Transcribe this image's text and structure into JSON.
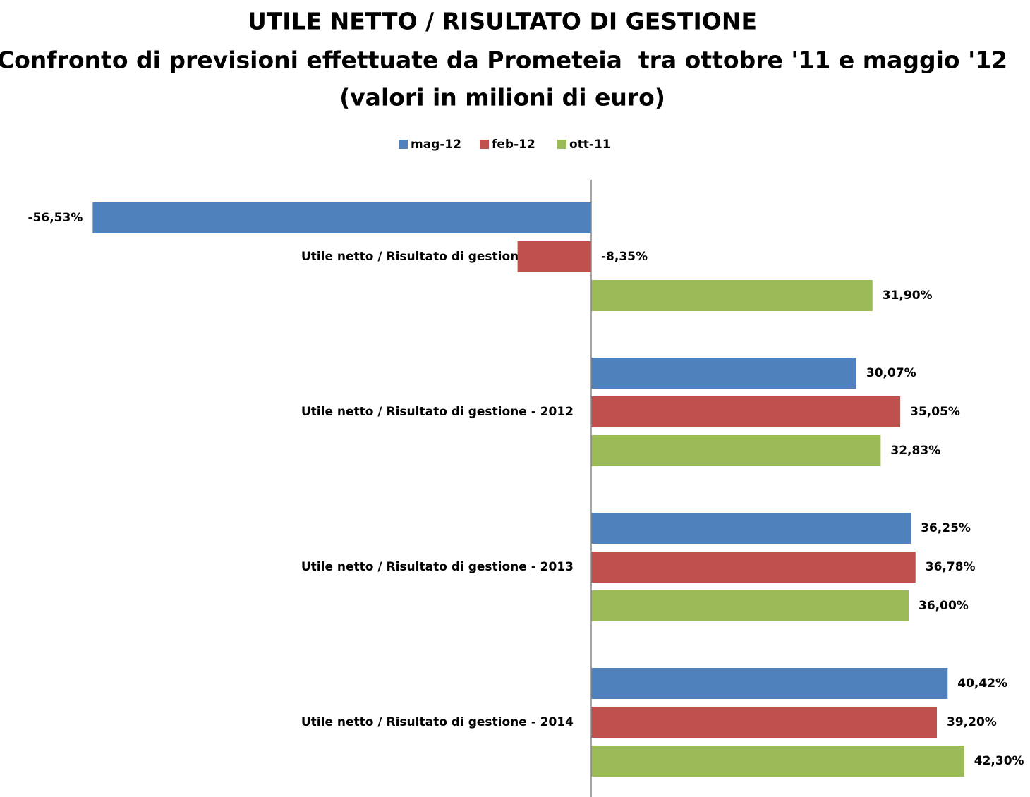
{
  "chart_data": {
    "type": "bar",
    "orientation": "horizontal",
    "title": "UTILE NETTO / RISULTATO DI GESTIONE",
    "subtitle": [
      "Confronto di previsioni effettuate da Prometeia  tra ottobre '11 e maggio '12",
      "(valori in milioni di euro)"
    ],
    "categories": [
      "Utile netto / Risultato di gestione - 2011",
      "Utile netto / Risultato di gestione - 2012",
      "Utile netto / Risultato di gestione - 2013",
      "Utile netto / Risultato di gestione - 2014"
    ],
    "series": [
      {
        "name": "mag-12",
        "color": "#4f81bd",
        "values": [
          -56.53,
          30.07,
          36.25,
          40.42
        ],
        "value_labels": [
          "-56,53%",
          "30,07%",
          "36,25%",
          "40,42%"
        ]
      },
      {
        "name": "feb-12",
        "color": "#c0504d",
        "values": [
          -8.35,
          35.05,
          36.78,
          39.2
        ],
        "value_labels": [
          "-8,35%",
          "35,05%",
          "36,78%",
          "39,20%"
        ]
      },
      {
        "name": "ott-11",
        "color": "#9bbb59",
        "values": [
          31.9,
          32.83,
          36.0,
          42.3
        ],
        "value_labels": [
          "31,90%",
          "32,83%",
          "36,00%",
          "42,30%"
        ]
      }
    ],
    "xlim": [
      -60,
      45
    ],
    "legend": "top"
  }
}
